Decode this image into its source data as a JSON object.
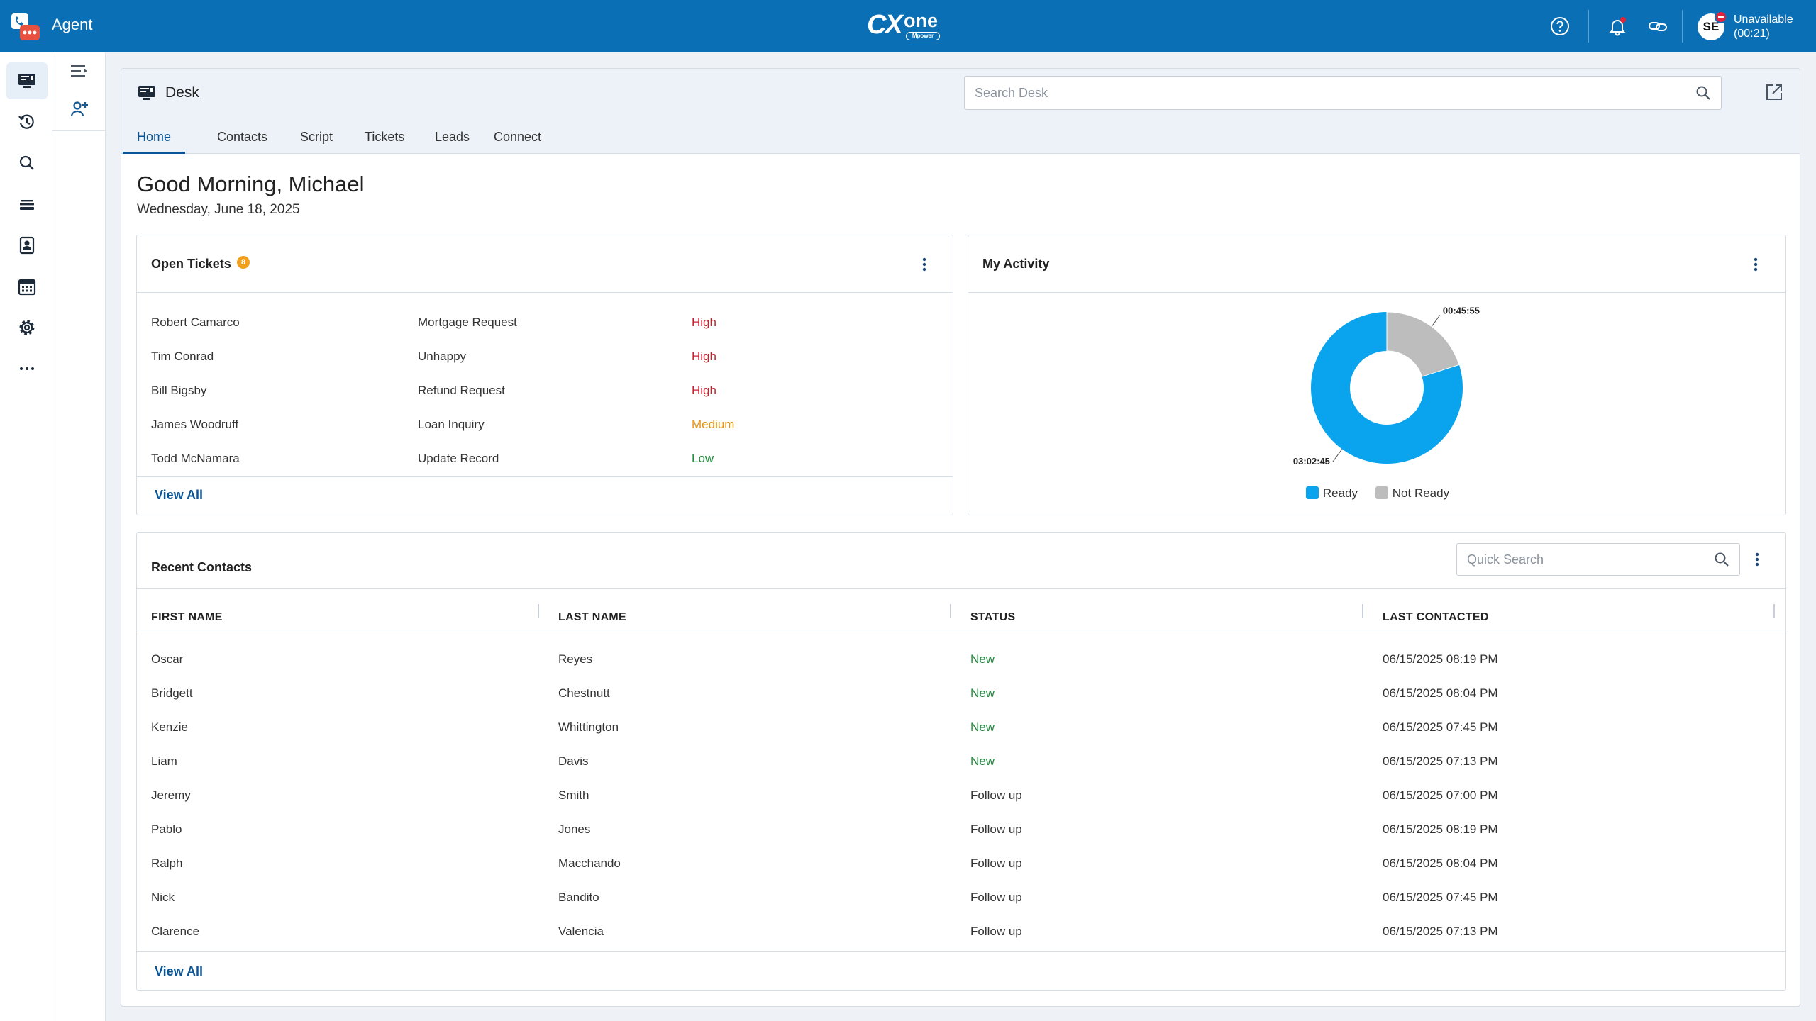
{
  "app": {
    "title": "Agent",
    "brand": "CXone",
    "brand_sub": "Mpower"
  },
  "topbar": {
    "avatar_initials": "SE",
    "status_label": "Unavailable",
    "status_timer": "(00:21)"
  },
  "desk": {
    "title": "Desk",
    "search_placeholder": "Search Desk",
    "tabs": [
      "Home",
      "Contacts",
      "Script",
      "Tickets",
      "Leads",
      "Connect"
    ],
    "active_tab": "Home"
  },
  "home": {
    "greeting": "Good Morning, Michael",
    "date": "Wednesday, June 18, 2025"
  },
  "open_tickets": {
    "title": "Open Tickets",
    "count": "8",
    "rows": [
      {
        "name": "Robert Camarco",
        "subject": "Mortgage Request",
        "priority": "High"
      },
      {
        "name": "Tim Conrad",
        "subject": "Unhappy",
        "priority": "High"
      },
      {
        "name": "Bill Bigsby",
        "subject": "Refund Request",
        "priority": "High"
      },
      {
        "name": "James Woodruff",
        "subject": "Loan Inquiry",
        "priority": "Medium"
      },
      {
        "name": "Todd McNamara",
        "subject": "Update Record",
        "priority": "Low"
      }
    ],
    "view_all": "View All"
  },
  "my_activity": {
    "title": "My Activity",
    "label_ready": "03:02:45",
    "label_not_ready": "00:45:55",
    "legend_ready": "Ready",
    "legend_not_ready": "Not Ready",
    "colors": {
      "ready": "#0aa4ee",
      "not_ready": "#bdbdbd"
    }
  },
  "chart_data": {
    "type": "pie",
    "categories": [
      "Ready",
      "Not Ready"
    ],
    "values": [
      10965,
      2755
    ],
    "display_values": [
      "03:02:45",
      "00:45:55"
    ],
    "title": "My Activity",
    "legend": "bottom"
  },
  "recent_contacts": {
    "title": "Recent Contacts",
    "search_placeholder": "Quick Search",
    "columns": [
      "FIRST NAME",
      "LAST NAME",
      "STATUS",
      "LAST CONTACTED"
    ],
    "rows": [
      {
        "first": "Oscar",
        "last": "Reyes",
        "status": "New",
        "contacted": "06/15/2025 08:19 PM"
      },
      {
        "first": "Bridgett",
        "last": "Chestnutt",
        "status": "New",
        "contacted": "06/15/2025 08:04 PM"
      },
      {
        "first": "Kenzie",
        "last": "Whittington",
        "status": "New",
        "contacted": "06/15/2025 07:45 PM"
      },
      {
        "first": "Liam",
        "last": "Davis",
        "status": "New",
        "contacted": "06/15/2025 07:13 PM"
      },
      {
        "first": "Jeremy",
        "last": "Smith",
        "status": "Follow up",
        "contacted": "06/15/2025 07:00 PM"
      },
      {
        "first": "Pablo",
        "last": "Jones",
        "status": "Follow up",
        "contacted": "06/15/2025 08:19 PM"
      },
      {
        "first": "Ralph",
        "last": "Macchando",
        "status": "Follow up",
        "contacted": "06/15/2025 08:04 PM"
      },
      {
        "first": "Nick",
        "last": "Bandito",
        "status": "Follow up",
        "contacted": "06/15/2025 07:45 PM"
      },
      {
        "first": "Clarence",
        "last": "Valencia",
        "status": "Follow up",
        "contacted": "06/15/2025 07:13 PM"
      }
    ],
    "view_all": "View All"
  }
}
